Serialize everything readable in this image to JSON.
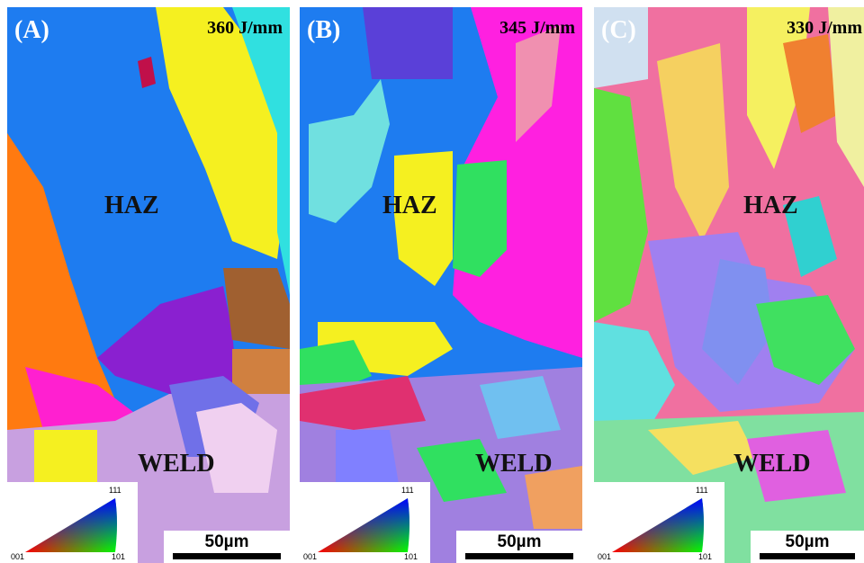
{
  "panels": [
    {
      "label": "(A)",
      "energy": "360 J/mm",
      "haz": "HAZ",
      "weld": "WELD",
      "scale_bar": "50µm",
      "ipf": {
        "top": "111",
        "left": "001",
        "right": "101"
      }
    },
    {
      "label": "(B)",
      "energy": "345 J/mm",
      "haz": "HAZ",
      "weld": "WELD",
      "scale_bar": "50µm",
      "ipf": {
        "top": "111",
        "left": "001",
        "right": "101"
      }
    },
    {
      "label": "(C)",
      "energy": "330 J/mm",
      "haz": "HAZ",
      "weld": "WELD",
      "scale_bar": "50µm",
      "ipf": {
        "top": "111",
        "left": "001",
        "right": "101"
      }
    }
  ]
}
